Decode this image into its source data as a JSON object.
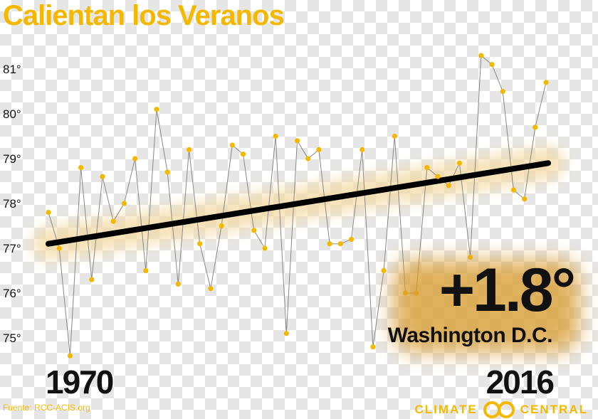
{
  "title": "Calientan los Veranos",
  "source": "Fuente: RCC-ACIS.org",
  "brand": {
    "left": "CLIMATE",
    "right": "CENTRAL",
    "logo_icon": "climate-central-logo-icon"
  },
  "highlight": {
    "value": "+1.8°",
    "place": "Washington D.C."
  },
  "start_year": "1970",
  "end_year": "2016",
  "colors": {
    "accent": "#f5b800",
    "line": "#888888",
    "trend": "#000000",
    "glow": "#f3d9a0"
  },
  "chart_data": {
    "type": "line",
    "title": "Calientan los Veranos",
    "xlabel": "",
    "ylabel": "",
    "x": [
      1970,
      1971,
      1972,
      1973,
      1974,
      1975,
      1976,
      1977,
      1978,
      1979,
      1980,
      1981,
      1982,
      1983,
      1984,
      1985,
      1986,
      1987,
      1988,
      1989,
      1990,
      1991,
      1992,
      1993,
      1994,
      1995,
      1996,
      1997,
      1998,
      1999,
      2000,
      2001,
      2002,
      2003,
      2004,
      2005,
      2006,
      2007,
      2008,
      2009,
      2010,
      2011,
      2012,
      2013,
      2014,
      2015,
      2016
    ],
    "series": [
      {
        "values": [
          77.8,
          77.0,
          74.6,
          78.8,
          76.3,
          78.6,
          77.6,
          78.0,
          79.0,
          76.5,
          80.1,
          78.7,
          76.2,
          79.2,
          77.1,
          76.1,
          77.5,
          79.3,
          79.1,
          77.4,
          77.0,
          79.5,
          75.1,
          79.4,
          79.0,
          79.2,
          77.1,
          77.1,
          77.2,
          79.2,
          74.8,
          76.5,
          79.5,
          76.0,
          76.0,
          78.8,
          78.6,
          78.4,
          78.9,
          76.8,
          81.3,
          81.1,
          80.5,
          78.3,
          78.1,
          79.7,
          80.7
        ]
      }
    ],
    "trend": {
      "start": 77.1,
      "end": 78.9
    },
    "ylim": [
      74.5,
      81.6
    ],
    "yticks": [
      "75°",
      "76°",
      "77°",
      "78°",
      "79°",
      "80°",
      "81°"
    ],
    "ytick_values": [
      75,
      76,
      77,
      78,
      79,
      80,
      81
    ],
    "grid": false,
    "legend": "none"
  }
}
